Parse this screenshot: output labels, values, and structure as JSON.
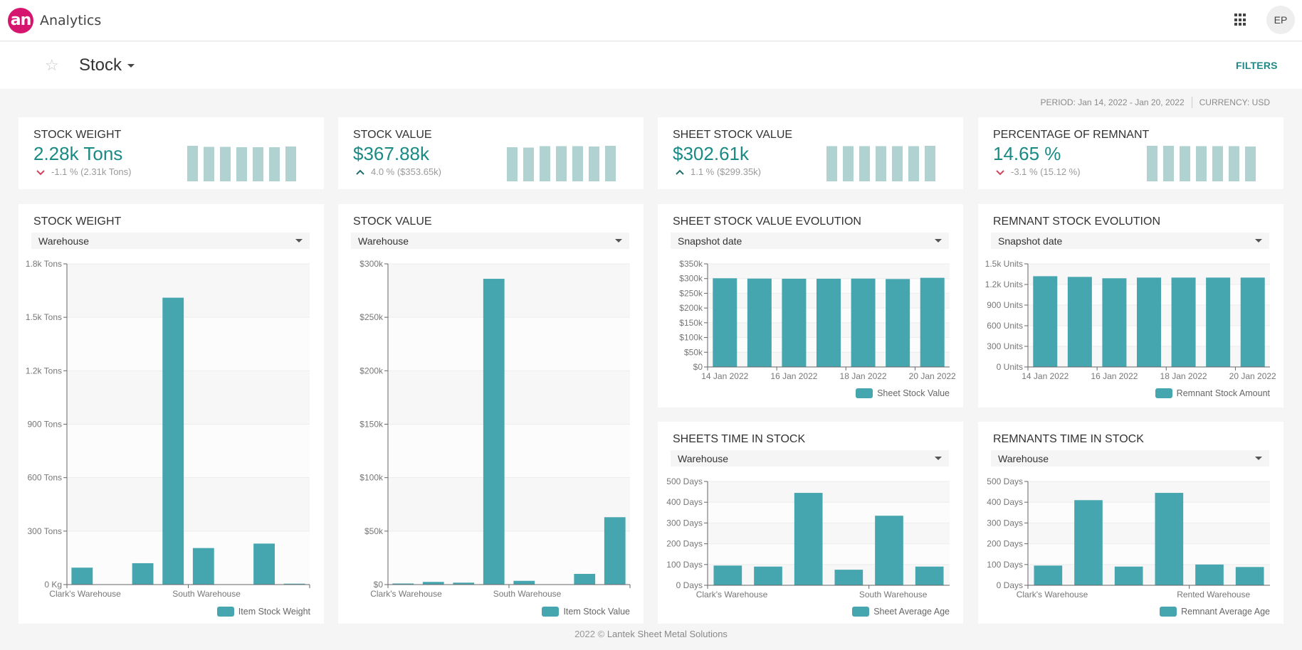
{
  "header": {
    "logo_text": "an",
    "app_title": "Analytics",
    "apps_icon": "grid-apps-icon",
    "avatar_initials": "EP"
  },
  "subheader": {
    "favorite_icon": "star-outline-icon",
    "page_title": "Stock",
    "filters_label": "FILTERS"
  },
  "meta": {
    "period": "PERIOD: Jan 14, 2022 - Jan 20, 2022",
    "currency": "CURRENCY: USD"
  },
  "colors": {
    "accent": "#1a8a85",
    "bar": "#45a6b0",
    "spark": "#b0d2d1",
    "down": "#d0445e",
    "up": "#1f6e6a",
    "logo": "#d6156f"
  },
  "kpis": [
    {
      "title": "STOCK WEIGHT",
      "value": "2.28k Tons",
      "direction": "down",
      "delta": "-1.1 % (2.31k Tons)",
      "spark": [
        1.0,
        0.97,
        0.97,
        0.96,
        0.96,
        0.96,
        0.98
      ]
    },
    {
      "title": "STOCK VALUE",
      "value": "$367.88k",
      "direction": "up",
      "delta": "4.0 % ($353.65k)",
      "spark": [
        0.96,
        0.95,
        0.99,
        0.99,
        0.99,
        0.98,
        1.0
      ]
    },
    {
      "title": "SHEET STOCK VALUE",
      "value": "$302.61k",
      "direction": "up",
      "delta": "1.1 % ($299.35k)",
      "spark": [
        0.99,
        0.99,
        0.99,
        0.99,
        0.99,
        0.99,
        1.0
      ]
    },
    {
      "title": "PERCENTAGE OF REMNANT",
      "value": "14.65 %",
      "direction": "down",
      "delta": "-3.1 % (15.12 %)",
      "spark": [
        1.0,
        1.0,
        0.99,
        0.99,
        0.99,
        0.99,
        0.98
      ]
    }
  ],
  "chart_data": [
    {
      "id": "stock-weight",
      "type": "bar",
      "title": "STOCK WEIGHT",
      "dimension": "Warehouse",
      "legend": "Item Stock Weight",
      "legend_position": "bottom-right",
      "categories": [
        "Clark's Warehouse",
        "",
        "",
        "",
        "South Warehouse",
        "",
        "",
        ""
      ],
      "values": [
        95,
        0,
        120,
        1610,
        205,
        0,
        230,
        5
      ],
      "unit": "Tons",
      "yticks": [
        "0 Kg",
        "300 Tons",
        "600 Tons",
        "900 Tons",
        "1.2k Tons",
        "1.5k Tons",
        "1.8k Tons"
      ],
      "ylim": [
        0,
        1800
      ],
      "grid": true,
      "xlabels": [
        {
          "label": "Clark's Warehouse",
          "index": 0
        },
        {
          "label": "South Warehouse",
          "index": 4
        }
      ]
    },
    {
      "id": "stock-value",
      "type": "bar",
      "title": "STOCK VALUE",
      "dimension": "Warehouse",
      "legend": "Item Stock Value",
      "legend_position": "bottom-right",
      "categories": [
        "Clark's Warehouse",
        "",
        "",
        "",
        "South Warehouse",
        "",
        "",
        ""
      ],
      "values": [
        1000,
        2500,
        1800,
        286000,
        3500,
        0,
        10000,
        63000
      ],
      "unit": "USD",
      "yticks": [
        "$0",
        "$50k",
        "$100k",
        "$150k",
        "$200k",
        "$250k",
        "$300k"
      ],
      "ylim": [
        0,
        300000
      ],
      "grid": true,
      "xlabels": [
        {
          "label": "Clark's Warehouse",
          "index": 0
        },
        {
          "label": "South Warehouse",
          "index": 4
        }
      ]
    },
    {
      "id": "sheet-stock-evolution",
      "type": "bar",
      "title": "SHEET STOCK VALUE EVOLUTION",
      "dimension": "Snapshot date",
      "legend": "Sheet Stock Value",
      "legend_position": "bottom-right",
      "categories": [
        "14 Jan 2022",
        "15 Jan 2022",
        "16 Jan 2022",
        "17 Jan 2022",
        "18 Jan 2022",
        "19 Jan 2022",
        "20 Jan 2022"
      ],
      "values": [
        301000,
        300000,
        299500,
        299500,
        300000,
        298500,
        302600
      ],
      "unit": "USD",
      "yticks": [
        "$0",
        "$50k",
        "$100k",
        "$150k",
        "$200k",
        "$250k",
        "$300k",
        "$350k"
      ],
      "ylim": [
        0,
        350000
      ],
      "grid": true,
      "xlabels": [
        {
          "label": "14 Jan 2022",
          "index": 0
        },
        {
          "label": "16 Jan 2022",
          "index": 2
        },
        {
          "label": "18 Jan 2022",
          "index": 4
        },
        {
          "label": "20 Jan 2022",
          "index": 6
        }
      ]
    },
    {
      "id": "remnant-stock-evolution",
      "type": "bar",
      "title": "REMNANT STOCK EVOLUTION",
      "dimension": "Snapshot date",
      "legend": "Remnant Stock Amount",
      "legend_position": "bottom-right",
      "categories": [
        "14 Jan 2022",
        "15 Jan 2022",
        "16 Jan 2022",
        "17 Jan 2022",
        "18 Jan 2022",
        "19 Jan 2022",
        "20 Jan 2022"
      ],
      "values": [
        1320,
        1310,
        1290,
        1300,
        1300,
        1300,
        1300
      ],
      "unit": "Units",
      "yticks": [
        "0 Units",
        "300 Units",
        "600 Units",
        "900 Units",
        "1.2k Units",
        "1.5k Units"
      ],
      "ylim": [
        0,
        1500
      ],
      "grid": true,
      "xlabels": [
        {
          "label": "14 Jan 2022",
          "index": 0
        },
        {
          "label": "16 Jan 2022",
          "index": 2
        },
        {
          "label": "18 Jan 2022",
          "index": 4
        },
        {
          "label": "20 Jan 2022",
          "index": 6
        }
      ]
    },
    {
      "id": "sheets-time-in-stock",
      "type": "bar",
      "title": "SHEETS TIME IN STOCK",
      "dimension": "Warehouse",
      "legend": "Sheet Average Age",
      "legend_position": "bottom-right",
      "categories": [
        "Clark's Warehouse",
        "",
        "",
        "",
        "South Warehouse",
        ""
      ],
      "values": [
        95,
        90,
        445,
        75,
        335,
        90
      ],
      "unit": "Days",
      "yticks": [
        "0 Days",
        "100 Days",
        "200 Days",
        "300 Days",
        "400 Days",
        "500 Days"
      ],
      "ylim": [
        0,
        500
      ],
      "grid": true,
      "xlabels": [
        {
          "label": "Clark's Warehouse",
          "index": 0
        },
        {
          "label": "South Warehouse",
          "index": 4
        }
      ]
    },
    {
      "id": "remnants-time-in-stock",
      "type": "bar",
      "title": "REMNANTS TIME IN STOCK",
      "dimension": "Warehouse",
      "legend": "Remnant Average Age",
      "legend_position": "bottom-right",
      "categories": [
        "Clark's Warehouse",
        "",
        "",
        "",
        "Rented Warehouse",
        ""
      ],
      "values": [
        95,
        410,
        90,
        445,
        100,
        88
      ],
      "unit": "Days",
      "yticks": [
        "0 Days",
        "100 Days",
        "200 Days",
        "300 Days",
        "400 Days",
        "500 Days"
      ],
      "ylim": [
        0,
        500
      ],
      "grid": true,
      "xlabels": [
        {
          "label": "Clark's Warehouse",
          "index": 0
        },
        {
          "label": "Rented Warehouse",
          "index": 4
        }
      ]
    }
  ],
  "footer": {
    "year": "2022 ©",
    "company": "Lantek Sheet Metal Solutions"
  }
}
